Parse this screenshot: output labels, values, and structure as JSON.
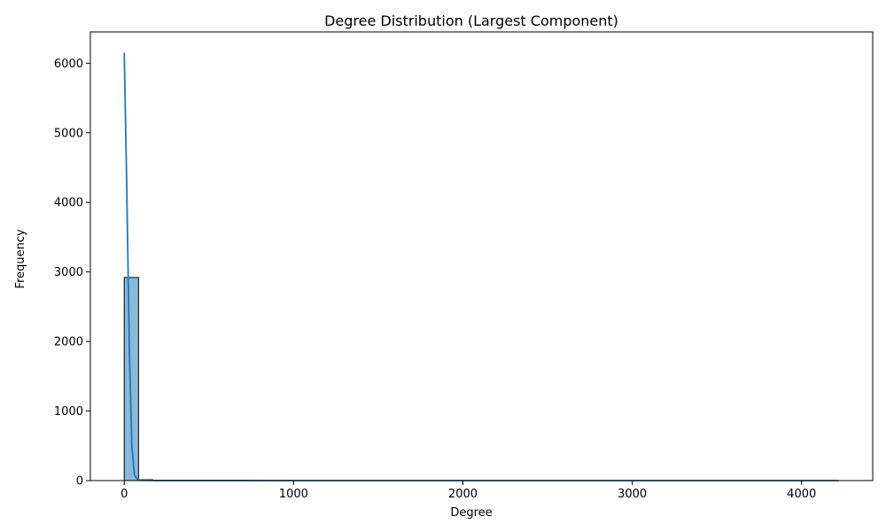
{
  "chart_data": {
    "type": "bar",
    "title": "Degree Distribution (Largest Component)",
    "xlabel": "Degree",
    "ylabel": "Frequency",
    "xlim": [
      -200,
      4420
    ],
    "ylim": [
      0,
      6450
    ],
    "xticks": [
      0,
      1000,
      2000,
      3000,
      4000
    ],
    "yticks": [
      0,
      1000,
      2000,
      3000,
      4000,
      5000,
      6000
    ],
    "grid": false,
    "bars": [
      {
        "x0": 0,
        "x1": 84.4,
        "value": 2920
      },
      {
        "x0": 84.4,
        "x1": 168.8,
        "value": 12
      },
      {
        "x0": 168.8,
        "x1": 253.2,
        "value": 3
      },
      {
        "x0": 253.2,
        "x1": 337.6,
        "value": 1
      },
      {
        "x0": 337.6,
        "x1": 422.0,
        "value": 1
      },
      {
        "x0": 590.8,
        "x1": 675.2,
        "value": 1
      }
    ],
    "kde": {
      "x": [
        0,
        15,
        30,
        45,
        60,
        80,
        100,
        150,
        200,
        400,
        700,
        1000,
        2000,
        3000,
        4000,
        4220
      ],
      "y": [
        6150,
        4200,
        1900,
        500,
        80,
        10,
        4,
        2,
        1,
        0.8,
        0.5,
        0.3,
        0.2,
        0.1,
        0.1,
        0.1
      ]
    },
    "colors": {
      "bar_fill": "#8ab8d9",
      "bar_edge": "#000000",
      "kde_line": "#1f77b4"
    }
  }
}
